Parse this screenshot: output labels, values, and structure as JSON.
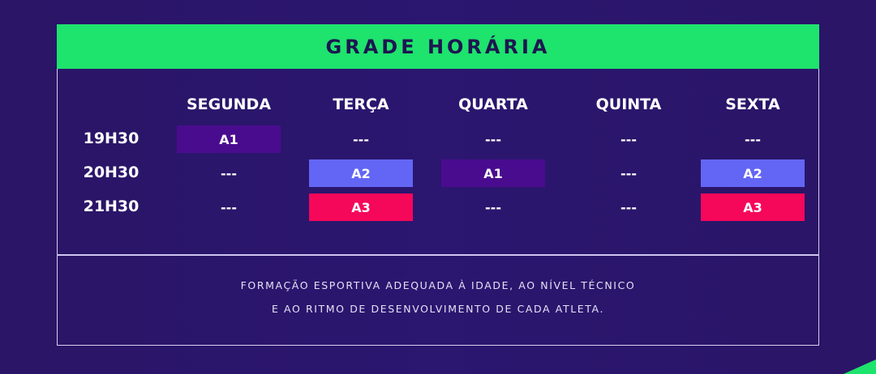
{
  "title": "GRADE HORÁRIA",
  "days": [
    "SEGUNDA",
    "TERÇA",
    "QUARTA",
    "QUINTA",
    "SEXTA"
  ],
  "times": [
    "19H30",
    "20H30",
    "21H30"
  ],
  "schedule": [
    [
      "A1",
      "---",
      "---",
      "---",
      "---"
    ],
    [
      "---",
      "A2",
      "A1",
      "---",
      "A2"
    ],
    [
      "---",
      "A3",
      "---",
      "---",
      "A3"
    ]
  ],
  "class_colors": {
    "A1": "#4a0c8f",
    "A2": "#6366f4",
    "A3": "#f5075a"
  },
  "colors": {
    "header": "#1ee36d",
    "background": "#2a1566"
  },
  "footer": {
    "line1": "FORMAÇÃO ESPORTIVA ADEQUADA À IDADE, AO NÍVEL TÉCNICO",
    "line2": "E AO RITMO DE DESENVOLVIMENTO DE CADA ATLETA."
  }
}
